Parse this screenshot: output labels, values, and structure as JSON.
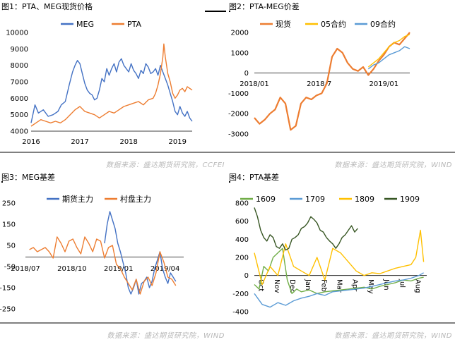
{
  "source_text": "数据来源：盛达期货研究院，CCFEI",
  "source_text_wind": "数据来源：盛达期货研究院，WIND",
  "chart_data": [
    {
      "id": "fig1",
      "type": "line",
      "title": "图1：PTA、MEG现货价格",
      "source": "数据来源：盛达期货研究院，CCFEI",
      "ylim": [
        4000,
        10000
      ],
      "yticks": [
        "4000",
        "5000",
        "6000",
        "7000",
        "8000",
        "9000",
        "10000"
      ],
      "xticks": [
        "2016",
        "2017",
        "2018",
        "2019"
      ],
      "xrange": [
        2016.0,
        2019.3
      ],
      "legend": "top",
      "series": [
        {
          "name": "MEG",
          "color": "#4472C4",
          "x": [
            2016.0,
            2016.08,
            2016.15,
            2016.25,
            2016.35,
            2016.45,
            2016.55,
            2016.62,
            2016.7,
            2016.78,
            2016.85,
            2016.9,
            2016.95,
            2017.0,
            2017.05,
            2017.1,
            2017.15,
            2017.2,
            2017.25,
            2017.3,
            2017.35,
            2017.4,
            2017.45,
            2017.5,
            2017.55,
            2017.6,
            2017.65,
            2017.7,
            2017.75,
            2017.8,
            2017.85,
            2017.9,
            2017.95,
            2018.0,
            2018.05,
            2018.1,
            2018.15,
            2018.2,
            2018.25,
            2018.3,
            2018.35,
            2018.4,
            2018.45,
            2018.5,
            2018.55,
            2018.6,
            2018.65,
            2018.7,
            2018.75,
            2018.8,
            2018.85,
            2018.9,
            2018.95,
            2019.0,
            2019.05,
            2019.1,
            2019.15,
            2019.2,
            2019.25,
            2019.3
          ],
          "values": [
            4500,
            5600,
            5100,
            5300,
            4900,
            5000,
            5200,
            5600,
            5800,
            6800,
            7600,
            8000,
            8300,
            8100,
            7500,
            6900,
            6500,
            6300,
            6200,
            5900,
            6000,
            6500,
            7200,
            7000,
            7800,
            7400,
            7800,
            8100,
            7600,
            8200,
            8400,
            8000,
            7800,
            7600,
            8100,
            7700,
            7500,
            7200,
            7700,
            7500,
            8100,
            7900,
            7500,
            7600,
            7800,
            7400,
            8000,
            7600,
            7200,
            6800,
            6300,
            5800,
            5200,
            5000,
            5500,
            5100,
            4900,
            5200,
            4800,
            4600
          ]
        },
        {
          "name": "PTA",
          "color": "#ED7D31",
          "x": [
            2016.0,
            2016.1,
            2016.2,
            2016.3,
            2016.4,
            2016.5,
            2016.6,
            2016.7,
            2016.8,
            2016.9,
            2017.0,
            2017.1,
            2017.2,
            2017.3,
            2017.4,
            2017.5,
            2017.6,
            2017.7,
            2017.8,
            2017.9,
            2018.0,
            2018.1,
            2018.2,
            2018.3,
            2018.4,
            2018.5,
            2018.55,
            2018.6,
            2018.65,
            2018.7,
            2018.72,
            2018.75,
            2018.8,
            2018.85,
            2018.9,
            2018.95,
            2019.0,
            2019.05,
            2019.1,
            2019.15,
            2019.2,
            2019.25,
            2019.3
          ],
          "values": [
            4300,
            4500,
            4700,
            4600,
            4500,
            4600,
            4500,
            4700,
            5000,
            5300,
            5500,
            5200,
            5100,
            5000,
            4800,
            5000,
            5200,
            5100,
            5300,
            5500,
            5600,
            5700,
            5800,
            5600,
            5900,
            6000,
            6300,
            6800,
            7500,
            8500,
            9300,
            8500,
            7500,
            7000,
            6300,
            6000,
            6200,
            6500,
            6600,
            6400,
            6700,
            6600,
            6500
          ]
        }
      ]
    },
    {
      "id": "fig2",
      "type": "line",
      "title": "图2：PTA-MEG价差",
      "ylim": [
        -3000,
        2000
      ],
      "yticks": [
        "2000",
        "1000",
        "0",
        "-1000",
        "-2000",
        "-3000"
      ],
      "xticks": [
        "2018/01",
        "2018/7",
        "2019/01"
      ],
      "xrange": [
        0,
        15
      ],
      "legend": "top",
      "series": [
        {
          "name": "现货",
          "color": "#ED7D31",
          "x": [
            0,
            0.5,
            1,
            1.5,
            2,
            2.5,
            3,
            3.5,
            4,
            4.5,
            5,
            5.5,
            6,
            6.5,
            7,
            7.5,
            8,
            8.5,
            9,
            9.5,
            10,
            10.5,
            11,
            11.5,
            12,
            12.5,
            13,
            13.5,
            14,
            14.5,
            15
          ],
          "values": [
            -2200,
            -2500,
            -2300,
            -2000,
            -1800,
            -1200,
            -1500,
            -2800,
            -2600,
            -1500,
            -1200,
            -1300,
            -1100,
            -1000,
            -500,
            800,
            1200,
            1000,
            500,
            200,
            100,
            300,
            -100,
            200,
            600,
            900,
            1300,
            1500,
            1400,
            1700,
            2000
          ]
        },
        {
          "name": "05合约",
          "color": "#FFC000",
          "x": [
            11,
            11.5,
            12,
            12.5,
            13,
            13.5,
            14,
            14.5,
            15
          ],
          "values": [
            300,
            500,
            700,
            1000,
            1300,
            1500,
            1600,
            1800,
            1900
          ]
        },
        {
          "name": "09合约",
          "color": "#5B9BD5",
          "x": [
            11,
            11.5,
            12,
            12.5,
            13,
            13.5,
            14,
            14.5,
            15
          ],
          "values": [
            200,
            400,
            500,
            700,
            900,
            1000,
            1100,
            1300,
            1200
          ]
        }
      ]
    },
    {
      "id": "fig3",
      "type": "line",
      "title": "图3：MEG基差",
      "ylim": [
        -250,
        250
      ],
      "yticks": [
        "250",
        "150",
        "50",
        "-50",
        "-150",
        "-250"
      ],
      "xticks": [
        "2018/07",
        "2018/10",
        "2019/01",
        "2019/04"
      ],
      "xrange": [
        0,
        12
      ],
      "legend": "top",
      "series": [
        {
          "name": "期货主力",
          "color": "#4472C4",
          "x": [
            6.0,
            6.2,
            6.4,
            6.6,
            6.8,
            7.0,
            7.2,
            7.4,
            7.6,
            7.8,
            8.0,
            8.2,
            8.4,
            8.6,
            8.8,
            9.0,
            9.2,
            9.4,
            9.6,
            9.8,
            10.0,
            10.2,
            10.4,
            10.6,
            10.8,
            11.0,
            11.2,
            11.4
          ],
          "values": [
            60,
            150,
            210,
            170,
            130,
            60,
            20,
            -30,
            -80,
            -150,
            -180,
            -150,
            -110,
            -180,
            -130,
            -120,
            -100,
            -150,
            -120,
            -60,
            -20,
            20,
            -60,
            -100,
            -130,
            -80,
            -100,
            -120
          ]
        },
        {
          "name": "村盘主力",
          "color": "#ED7D31",
          "x": [
            0.3,
            0.6,
            0.9,
            1.2,
            1.5,
            1.8,
            2.1,
            2.4,
            2.7,
            3.0,
            3.3,
            3.6,
            3.9,
            4.2,
            4.5,
            4.8,
            5.1,
            5.4,
            5.7,
            6.0,
            6.3,
            6.6,
            6.9,
            7.2,
            7.5,
            7.8,
            8.1,
            8.4,
            8.7,
            9.0,
            9.3,
            9.6,
            9.9,
            10.2,
            10.5,
            10.8,
            11.1,
            11.4
          ],
          "values": [
            30,
            40,
            20,
            30,
            40,
            20,
            -10,
            90,
            60,
            20,
            70,
            80,
            40,
            10,
            90,
            60,
            20,
            80,
            70,
            -10,
            40,
            50,
            -40,
            -60,
            -100,
            -130,
            -160,
            -110,
            -180,
            -120,
            -100,
            -140,
            -80,
            20,
            -30,
            -100,
            -110,
            -140
          ]
        }
      ]
    },
    {
      "id": "fig4",
      "type": "line",
      "title": "图4：PTA基差",
      "ylim": [
        -400,
        800
      ],
      "yticks": [
        "800",
        "600",
        "400",
        "200",
        "0",
        "-200",
        "-400"
      ],
      "xticks": [
        "Oct",
        "Nov",
        "Dec",
        "Jan",
        "Feb",
        "Mar",
        "Apr",
        "May",
        "Jun",
        "Jul",
        "Aug"
      ],
      "xrange": [
        0,
        11
      ],
      "legend": "top",
      "series": [
        {
          "name": "1609",
          "color": "#70AD47",
          "x": [
            0,
            0.3,
            0.6,
            0.9,
            1.2,
            1.5,
            1.8,
            2.1,
            2.4,
            2.7,
            3.0,
            3.5,
            4.0,
            4.5,
            5.0,
            5.5,
            6.0,
            6.5,
            7.0,
            7.5,
            8.0,
            8.5,
            9.0,
            9.5,
            10.0,
            10.5,
            10.8
          ],
          "values": [
            -100,
            -150,
            100,
            50,
            200,
            250,
            300,
            -50,
            -200,
            -150,
            -180,
            -160,
            -200,
            -180,
            -170,
            -160,
            -150,
            -140,
            -130,
            -150,
            -120,
            -100,
            -80,
            -50,
            -60,
            -30,
            -20
          ]
        },
        {
          "name": "1709",
          "color": "#5B9BD5",
          "x": [
            0,
            0.5,
            1.0,
            1.5,
            2.0,
            2.5,
            3.0,
            3.5,
            4.0,
            4.5,
            5.0,
            5.5,
            6.0,
            6.5,
            7.0,
            7.5,
            8.0,
            8.5,
            9.0,
            9.5,
            10.0,
            10.5,
            10.8
          ],
          "values": [
            -200,
            -320,
            -350,
            -300,
            -330,
            -280,
            -250,
            -230,
            -200,
            -220,
            -180,
            -170,
            -160,
            -150,
            -140,
            -120,
            -100,
            -80,
            -60,
            -50,
            -30,
            0,
            30
          ]
        },
        {
          "name": "1809",
          "color": "#FFC000",
          "x": [
            0,
            0.5,
            1.0,
            1.5,
            2.0,
            2.5,
            3.0,
            3.5,
            4.0,
            4.5,
            5.0,
            5.5,
            6.0,
            6.5,
            7.0,
            7.5,
            8.0,
            8.5,
            9.0,
            9.5,
            10.0,
            10.3,
            10.6,
            10.8
          ],
          "values": [
            250,
            -100,
            100,
            0,
            350,
            100,
            50,
            0,
            200,
            -50,
            300,
            250,
            150,
            50,
            0,
            30,
            20,
            50,
            80,
            100,
            120,
            200,
            500,
            150
          ]
        },
        {
          "name": "1909",
          "color": "#375623",
          "x": [
            0,
            0.2,
            0.4,
            0.6,
            0.8,
            1.0,
            1.2,
            1.4,
            1.6,
            1.8,
            2.0,
            2.2,
            2.4,
            2.6,
            2.8,
            3.0,
            3.2,
            3.4,
            3.6,
            3.8,
            4.0,
            4.2,
            4.4,
            4.6,
            4.8,
            5.0,
            5.2,
            5.4,
            5.6,
            5.8,
            6.0,
            6.2,
            6.4,
            6.6
          ],
          "values": [
            750,
            650,
            500,
            420,
            380,
            450,
            420,
            320,
            300,
            350,
            280,
            300,
            400,
            420,
            450,
            520,
            540,
            580,
            650,
            620,
            580,
            500,
            480,
            420,
            380,
            350,
            300,
            350,
            420,
            450,
            500,
            550,
            480,
            520
          ]
        }
      ]
    }
  ]
}
